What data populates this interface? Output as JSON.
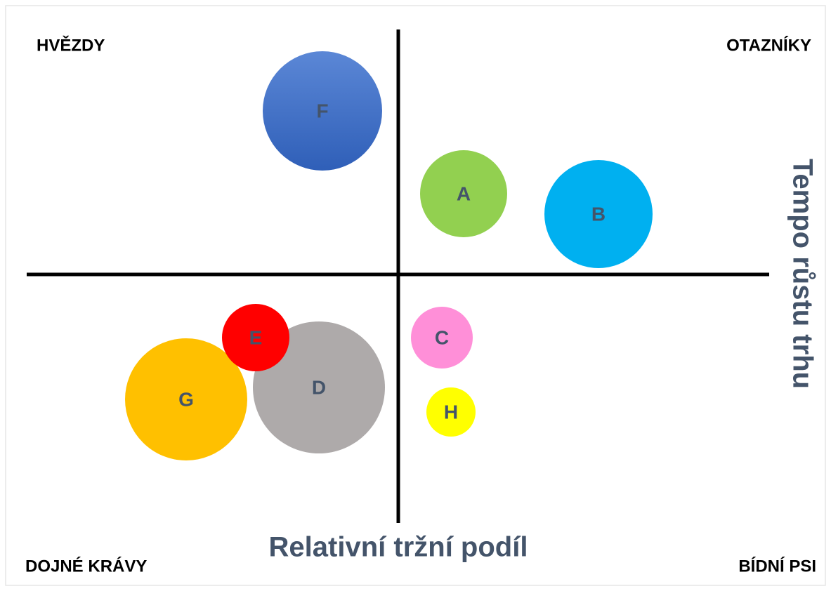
{
  "quadrants": {
    "top_left": "HVĚZDY",
    "top_right": "OTAZNÍKY",
    "bottom_left": "DOJNÉ KRÁVY",
    "bottom_right": "BÍDNÍ PSI"
  },
  "x_axis_label": "Relativní tržní podíl",
  "y_axis_label": "Tempo růstu trhu",
  "bubbles": [
    {
      "label": "G",
      "color": "#ffc000"
    },
    {
      "label": "D",
      "color": "#aeaaaa"
    },
    {
      "label": "E",
      "color": "#ff0000"
    },
    {
      "label": "F",
      "color": "#4472c4"
    },
    {
      "label": "A",
      "color": "#92d050"
    },
    {
      "label": "B",
      "color": "#00b0f0"
    },
    {
      "label": "C",
      "color": "#ff8fd8"
    },
    {
      "label": "H",
      "color": "#ffff00"
    }
  ]
}
